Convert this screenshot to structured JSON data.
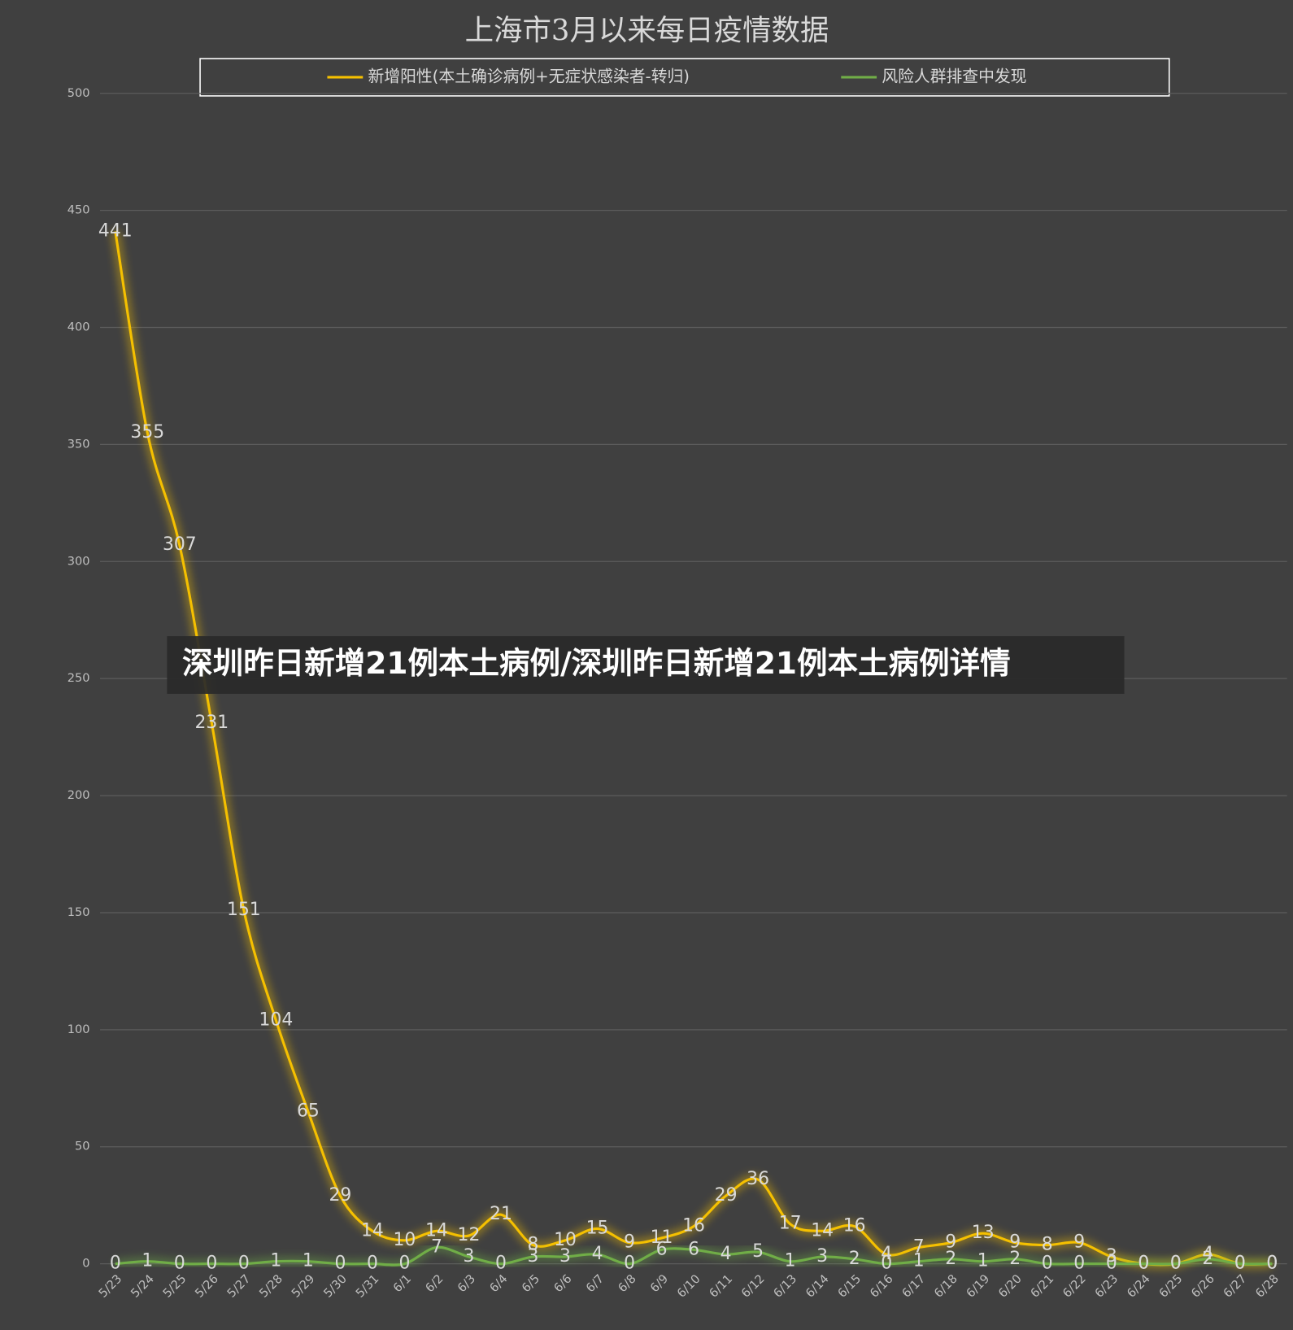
{
  "banner": "深圳昨日新增21例本土病例/深圳昨日新增21例本土病例详情",
  "chart_data": {
    "type": "line",
    "title": "上海市3月以来每日疫情数据",
    "categories": [
      "5/23",
      "5/24",
      "5/25",
      "5/26",
      "5/27",
      "5/28",
      "5/29",
      "5/30",
      "5/31",
      "6/1",
      "6/2",
      "6/3",
      "6/4",
      "6/5",
      "6/6",
      "6/7",
      "6/8",
      "6/9",
      "6/10",
      "6/11",
      "6/12",
      "6/13",
      "6/14",
      "6/15",
      "6/16",
      "6/17",
      "6/18",
      "6/19",
      "6/20",
      "6/21",
      "6/22",
      "6/23",
      "6/24",
      "6/25",
      "6/26",
      "6/27",
      "6/28"
    ],
    "series": [
      {
        "name": "新增阳性(本土确诊病例+无症状感染者-转归)",
        "color": "#f5c000",
        "values": [
          441,
          355,
          307,
          231,
          151,
          104,
          65,
          29,
          14,
          10,
          14,
          12,
          21,
          8,
          10,
          15,
          9,
          11,
          16,
          29,
          36,
          17,
          14,
          16,
          4,
          7,
          9,
          13,
          9,
          8,
          9,
          3,
          0,
          0,
          4,
          0,
          0
        ]
      },
      {
        "name": "风险人群排查中发现",
        "color": "#70ad47",
        "values": [
          0,
          1,
          0,
          0,
          0,
          1,
          1,
          0,
          0,
          0,
          7,
          3,
          0,
          3,
          3,
          4,
          0,
          6,
          6,
          4,
          5,
          1,
          3,
          2,
          0,
          1,
          2,
          1,
          2,
          0,
          0,
          0,
          0,
          0,
          2,
          0,
          0
        ]
      }
    ],
    "ylim": [
      0,
      500
    ],
    "yticks": [
      0,
      50,
      100,
      150,
      200,
      250,
      300,
      350,
      400,
      450,
      500
    ],
    "grid": true,
    "legend": "top"
  }
}
